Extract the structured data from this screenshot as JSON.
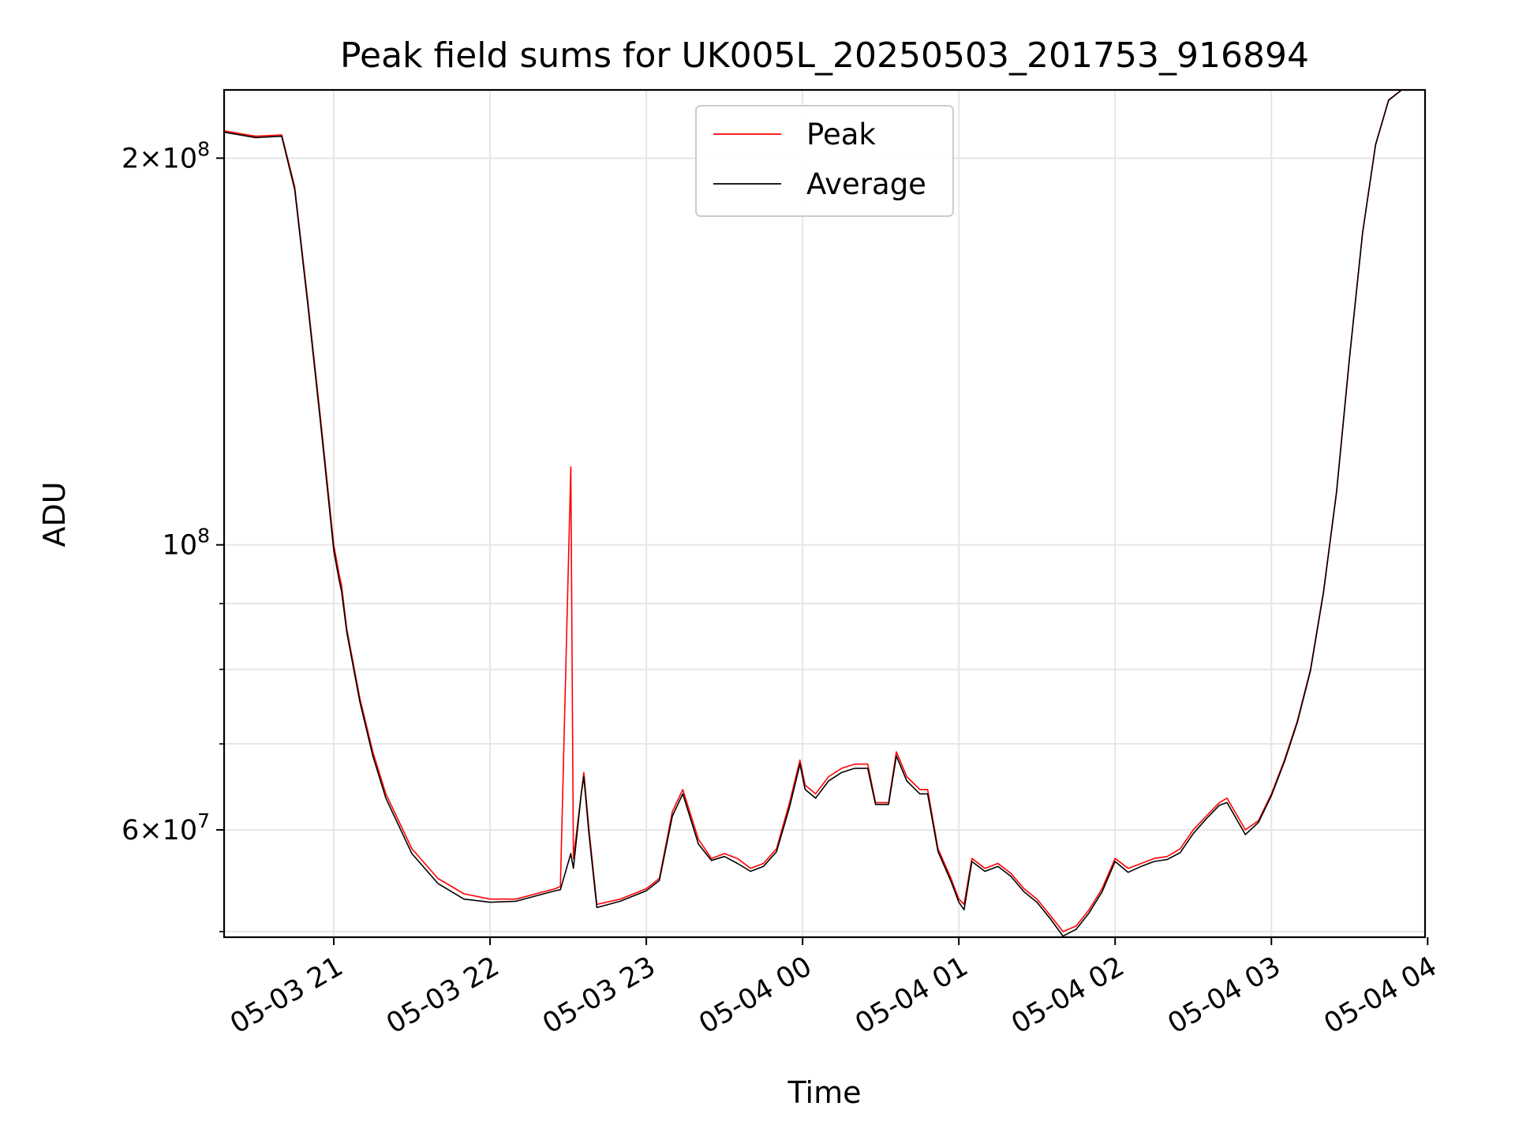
{
  "chart_data": {
    "type": "line",
    "title": "Peak field sums for UK005L_20250503_201753_916894",
    "xlabel": "Time",
    "ylabel": "ADU",
    "yscale": "log",
    "ylim": [
      49500000,
      226000000
    ],
    "xlim": [
      "2025-05-03 20:17:53",
      "2025-05-04 03:59:00"
    ],
    "xticks": [
      {
        "t": "2025-05-03 21:00",
        "label": "05-03 21"
      },
      {
        "t": "2025-05-03 22:00",
        "label": "05-03 22"
      },
      {
        "t": "2025-05-03 23:00",
        "label": "05-03 23"
      },
      {
        "t": "2025-05-04 00:00",
        "label": "05-04 00"
      },
      {
        "t": "2025-05-04 01:00",
        "label": "05-04 01"
      },
      {
        "t": "2025-05-04 02:00",
        "label": "05-04 02"
      },
      {
        "t": "2025-05-04 03:00",
        "label": "05-04 03"
      },
      {
        "t": "2025-05-04 04:00",
        "label": "05-04 04"
      }
    ],
    "yticks_major": [
      {
        "v": 60000000,
        "base": "6",
        "exp": "7"
      },
      {
        "v": 100000000,
        "base": "",
        "exp": "8"
      },
      {
        "v": 200000000,
        "base": "2",
        "exp": "8"
      }
    ],
    "yticks_minor": [
      50000000,
      70000000,
      80000000,
      90000000
    ],
    "grid": true,
    "legend_position": "top-center",
    "series": [
      {
        "name": "Peak",
        "color": "#ff0000",
        "points": [
          [
            "2025-05-03 20:17:53",
            210000000
          ],
          [
            "2025-05-03 20:30",
            208000000
          ],
          [
            "2025-05-03 20:40",
            208500000
          ],
          [
            "2025-05-03 20:45",
            190000000
          ],
          [
            "2025-05-03 20:50",
            155000000
          ],
          [
            "2025-05-03 20:55",
            125000000
          ],
          [
            "2025-05-03 21:00",
            100000000
          ],
          [
            "2025-05-03 21:02",
            95000000
          ],
          [
            "2025-05-03 21:03",
            93000000
          ],
          [
            "2025-05-03 21:05",
            86000000
          ],
          [
            "2025-05-03 21:10",
            76000000
          ],
          [
            "2025-05-03 21:15",
            69000000
          ],
          [
            "2025-05-03 21:20",
            64000000
          ],
          [
            "2025-05-03 21:30",
            58000000
          ],
          [
            "2025-05-03 21:40",
            55000000
          ],
          [
            "2025-05-03 21:50",
            53500000
          ],
          [
            "2025-05-03 22:00",
            53000000
          ],
          [
            "2025-05-03 22:10",
            53000000
          ],
          [
            "2025-05-03 22:25",
            54000000
          ],
          [
            "2025-05-03 22:27",
            54200000
          ],
          [
            "2025-05-03 22:31",
            115000000
          ],
          [
            "2025-05-03 22:32",
            57000000
          ],
          [
            "2025-05-03 22:35",
            64000000
          ],
          [
            "2025-05-03 22:36",
            66500000
          ],
          [
            "2025-05-03 22:38",
            60000000
          ],
          [
            "2025-05-03 22:41",
            52500000
          ],
          [
            "2025-05-03 22:50",
            53000000
          ],
          [
            "2025-05-03 23:00",
            54000000
          ],
          [
            "2025-05-03 23:05",
            55000000
          ],
          [
            "2025-05-03 23:10",
            62000000
          ],
          [
            "2025-05-03 23:14",
            64500000
          ],
          [
            "2025-05-03 23:20",
            59000000
          ],
          [
            "2025-05-03 23:25",
            57000000
          ],
          [
            "2025-05-03 23:30",
            57500000
          ],
          [
            "2025-05-03 23:35",
            57000000
          ],
          [
            "2025-05-03 23:40",
            56000000
          ],
          [
            "2025-05-03 23:45",
            56500000
          ],
          [
            "2025-05-03 23:50",
            58000000
          ],
          [
            "2025-05-03 23:55",
            63000000
          ],
          [
            "2025-05-03 23:59",
            68000000
          ],
          [
            "2025-05-04 00:01",
            65000000
          ],
          [
            "2025-05-04 00:05",
            64000000
          ],
          [
            "2025-05-04 00:10",
            66000000
          ],
          [
            "2025-05-04 00:15",
            67000000
          ],
          [
            "2025-05-04 00:20",
            67500000
          ],
          [
            "2025-05-04 00:25",
            67500000
          ],
          [
            "2025-05-04 00:28",
            63000000
          ],
          [
            "2025-05-04 00:33",
            63000000
          ],
          [
            "2025-05-04 00:36",
            69000000
          ],
          [
            "2025-05-04 00:40",
            66000000
          ],
          [
            "2025-05-04 00:45",
            64500000
          ],
          [
            "2025-05-04 00:48",
            64500000
          ],
          [
            "2025-05-04 00:52",
            58000000
          ],
          [
            "2025-05-04 00:57",
            55000000
          ],
          [
            "2025-05-04 01:00",
            53000000
          ],
          [
            "2025-05-04 01:02",
            52500000
          ],
          [
            "2025-05-04 01:05",
            57000000
          ],
          [
            "2025-05-04 01:10",
            56000000
          ],
          [
            "2025-05-04 01:15",
            56500000
          ],
          [
            "2025-05-04 01:20",
            55500000
          ],
          [
            "2025-05-04 01:25",
            54000000
          ],
          [
            "2025-05-04 01:30",
            53000000
          ],
          [
            "2025-05-04 01:35",
            51500000
          ],
          [
            "2025-05-04 01:40",
            50000000
          ],
          [
            "2025-05-04 01:45",
            50500000
          ],
          [
            "2025-05-04 01:50",
            52000000
          ],
          [
            "2025-05-04 01:55",
            54000000
          ],
          [
            "2025-05-04 02:00",
            57000000
          ],
          [
            "2025-05-04 02:05",
            56000000
          ],
          [
            "2025-05-04 02:10",
            56500000
          ],
          [
            "2025-05-04 02:15",
            57000000
          ],
          [
            "2025-05-04 02:20",
            57200000
          ],
          [
            "2025-05-04 02:25",
            58000000
          ],
          [
            "2025-05-04 02:30",
            60000000
          ],
          [
            "2025-05-04 02:35",
            61500000
          ],
          [
            "2025-05-04 02:40",
            63000000
          ],
          [
            "2025-05-04 02:43",
            63500000
          ],
          [
            "2025-05-04 02:50",
            60000000
          ],
          [
            "2025-05-04 02:55",
            61000000
          ],
          [
            "2025-05-04 03:00",
            64000000
          ],
          [
            "2025-05-04 03:05",
            68000000
          ],
          [
            "2025-05-04 03:10",
            73000000
          ],
          [
            "2025-05-04 03:15",
            80000000
          ],
          [
            "2025-05-04 03:20",
            92000000
          ],
          [
            "2025-05-04 03:25",
            110000000
          ],
          [
            "2025-05-04 03:30",
            140000000
          ],
          [
            "2025-05-04 03:35",
            175000000
          ],
          [
            "2025-05-04 03:40",
            205000000
          ],
          [
            "2025-05-04 03:45",
            222000000
          ],
          [
            "2025-05-04 03:50",
            226000000
          ]
        ]
      },
      {
        "name": "Average",
        "color": "#000000",
        "points": [
          [
            "2025-05-03 20:17:53",
            209500000
          ],
          [
            "2025-05-03 20:30",
            207500000
          ],
          [
            "2025-05-03 20:40",
            208000000
          ],
          [
            "2025-05-03 20:45",
            189000000
          ],
          [
            "2025-05-03 20:50",
            154000000
          ],
          [
            "2025-05-03 20:55",
            124000000
          ],
          [
            "2025-05-03 21:00",
            99000000
          ],
          [
            "2025-05-03 21:02",
            94000000
          ],
          [
            "2025-05-03 21:03",
            92000000
          ],
          [
            "2025-05-03 21:05",
            85500000
          ],
          [
            "2025-05-03 21:10",
            75500000
          ],
          [
            "2025-05-03 21:15",
            68500000
          ],
          [
            "2025-05-03 21:20",
            63500000
          ],
          [
            "2025-05-03 21:30",
            57500000
          ],
          [
            "2025-05-03 21:40",
            54500000
          ],
          [
            "2025-05-03 21:50",
            53000000
          ],
          [
            "2025-05-03 22:00",
            52700000
          ],
          [
            "2025-05-03 22:10",
            52800000
          ],
          [
            "2025-05-03 22:25",
            53800000
          ],
          [
            "2025-05-03 22:27",
            53900000
          ],
          [
            "2025-05-03 22:31",
            57500000
          ],
          [
            "2025-05-03 22:32",
            56000000
          ],
          [
            "2025-05-03 22:35",
            64000000
          ],
          [
            "2025-05-03 22:36",
            66000000
          ],
          [
            "2025-05-03 22:38",
            59500000
          ],
          [
            "2025-05-03 22:41",
            52200000
          ],
          [
            "2025-05-03 22:50",
            52800000
          ],
          [
            "2025-05-03 23:00",
            53800000
          ],
          [
            "2025-05-03 23:05",
            54800000
          ],
          [
            "2025-05-03 23:10",
            61500000
          ],
          [
            "2025-05-03 23:14",
            64000000
          ],
          [
            "2025-05-03 23:20",
            58500000
          ],
          [
            "2025-05-03 23:25",
            56800000
          ],
          [
            "2025-05-03 23:30",
            57200000
          ],
          [
            "2025-05-03 23:35",
            56500000
          ],
          [
            "2025-05-03 23:40",
            55700000
          ],
          [
            "2025-05-03 23:45",
            56200000
          ],
          [
            "2025-05-03 23:50",
            57700000
          ],
          [
            "2025-05-03 23:55",
            62500000
          ],
          [
            "2025-05-03 23:59",
            67500000
          ],
          [
            "2025-05-04 00:01",
            64500000
          ],
          [
            "2025-05-04 00:05",
            63500000
          ],
          [
            "2025-05-04 00:10",
            65500000
          ],
          [
            "2025-05-04 00:15",
            66500000
          ],
          [
            "2025-05-04 00:20",
            67000000
          ],
          [
            "2025-05-04 00:25",
            67000000
          ],
          [
            "2025-05-04 00:28",
            62800000
          ],
          [
            "2025-05-04 00:33",
            62800000
          ],
          [
            "2025-05-04 00:36",
            68500000
          ],
          [
            "2025-05-04 00:40",
            65500000
          ],
          [
            "2025-05-04 00:45",
            64000000
          ],
          [
            "2025-05-04 00:48",
            64000000
          ],
          [
            "2025-05-04 00:52",
            57700000
          ],
          [
            "2025-05-04 00:57",
            54700000
          ],
          [
            "2025-05-04 01:00",
            52700000
          ],
          [
            "2025-05-04 01:02",
            52000000
          ],
          [
            "2025-05-04 01:05",
            56700000
          ],
          [
            "2025-05-04 01:10",
            55700000
          ],
          [
            "2025-05-04 01:15",
            56200000
          ],
          [
            "2025-05-04 01:20",
            55200000
          ],
          [
            "2025-05-04 01:25",
            53700000
          ],
          [
            "2025-05-04 01:30",
            52700000
          ],
          [
            "2025-05-04 01:35",
            51200000
          ],
          [
            "2025-05-04 01:40",
            49600000
          ],
          [
            "2025-05-04 01:45",
            50200000
          ],
          [
            "2025-05-04 01:50",
            51700000
          ],
          [
            "2025-05-04 01:55",
            53700000
          ],
          [
            "2025-05-04 02:00",
            56700000
          ],
          [
            "2025-05-04 02:05",
            55600000
          ],
          [
            "2025-05-04 02:10",
            56200000
          ],
          [
            "2025-05-04 02:15",
            56700000
          ],
          [
            "2025-05-04 02:20",
            56900000
          ],
          [
            "2025-05-04 02:25",
            57600000
          ],
          [
            "2025-05-04 02:30",
            59600000
          ],
          [
            "2025-05-04 02:35",
            61200000
          ],
          [
            "2025-05-04 02:40",
            62700000
          ],
          [
            "2025-05-04 02:43",
            63000000
          ],
          [
            "2025-05-04 02:50",
            59500000
          ],
          [
            "2025-05-04 02:55",
            60800000
          ],
          [
            "2025-05-04 03:00",
            63800000
          ],
          [
            "2025-05-04 03:05",
            67800000
          ],
          [
            "2025-05-04 03:10",
            72800000
          ],
          [
            "2025-05-04 03:15",
            79800000
          ],
          [
            "2025-05-04 03:20",
            91800000
          ],
          [
            "2025-05-04 03:25",
            109800000
          ],
          [
            "2025-05-04 03:30",
            139800000
          ],
          [
            "2025-05-04 03:35",
            174800000
          ],
          [
            "2025-05-04 03:40",
            204800000
          ],
          [
            "2025-05-04 03:45",
            221800000
          ],
          [
            "2025-05-04 03:50",
            226000000
          ]
        ]
      }
    ]
  }
}
